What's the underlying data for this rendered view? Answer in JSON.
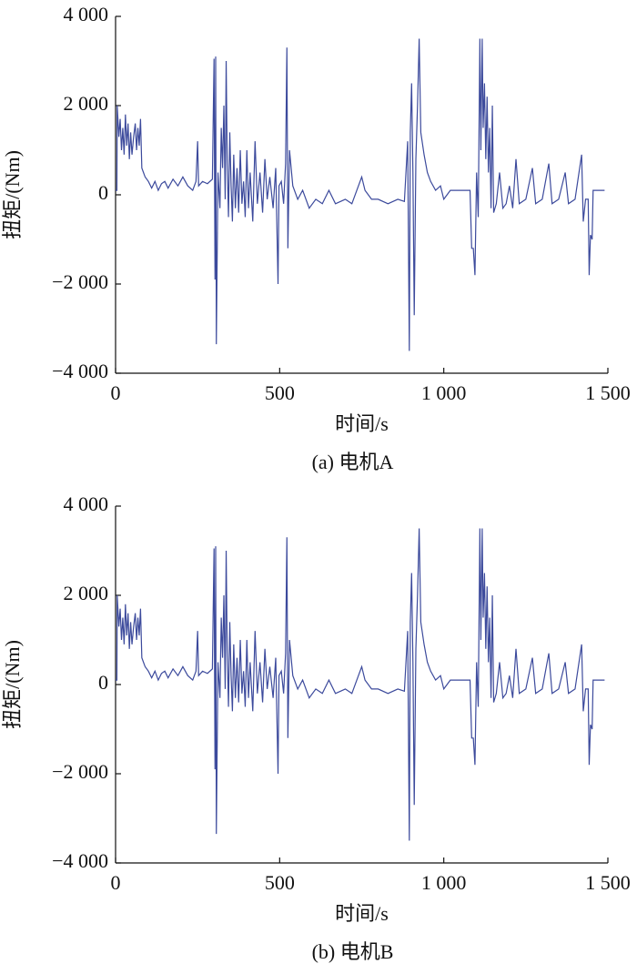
{
  "chart_data": [
    {
      "type": "line",
      "title": "(a)  电机A",
      "x_label": "时间/s",
      "y_label": "扭矩/(Nm)",
      "color": "#3c4a9c",
      "xlim": [
        0,
        1500
      ],
      "xticks": [
        0,
        500,
        {
          "value": 1000,
          "label": "1 000"
        },
        {
          "value": 1500,
          "label": "1 500"
        }
      ],
      "ylim": [
        -4000,
        4000
      ],
      "yticks": [
        {
          "value": -4000,
          "label": "−4 000"
        },
        {
          "value": -2000,
          "label": "−2 000"
        },
        0,
        {
          "value": 2000,
          "label": "2 000"
        },
        {
          "value": 4000,
          "label": "4 000"
        }
      ],
      "x": [
        0,
        4,
        5,
        10,
        14,
        18,
        22,
        26,
        30,
        34,
        38,
        42,
        46,
        50,
        55,
        60,
        64,
        68,
        72,
        76,
        80,
        85,
        90,
        100,
        110,
        120,
        130,
        140,
        150,
        160,
        175,
        190,
        205,
        220,
        235,
        245,
        250,
        253,
        265,
        280,
        295,
        300,
        303,
        305,
        307,
        312,
        318,
        322,
        326,
        330,
        334,
        337,
        340,
        344,
        348,
        352,
        356,
        360,
        365,
        370,
        375,
        380,
        385,
        390,
        395,
        400,
        405,
        410,
        418,
        425,
        432,
        440,
        448,
        455,
        462,
        470,
        480,
        488,
        495,
        498,
        505,
        512,
        518,
        522,
        525,
        530,
        540,
        555,
        570,
        590,
        610,
        630,
        650,
        670,
        700,
        720,
        740,
        750,
        760,
        780,
        800,
        830,
        860,
        880,
        890,
        895,
        898,
        902,
        906,
        910,
        915,
        920,
        925,
        930,
        940,
        950,
        960,
        975,
        990,
        1000,
        1010,
        1020,
        1040,
        1060,
        1080,
        1085,
        1090,
        1095,
        1100,
        1105,
        1110,
        1113,
        1117,
        1120,
        1124,
        1128,
        1132,
        1136,
        1140,
        1144,
        1148,
        1152,
        1160,
        1170,
        1180,
        1190,
        1200,
        1210,
        1220,
        1230,
        1250,
        1270,
        1280,
        1300,
        1320,
        1330,
        1350,
        1370,
        1380,
        1400,
        1420,
        1425,
        1432,
        1440,
        1443,
        1447,
        1452,
        1455,
        1490
      ],
      "values": [
        100,
        100,
        2000,
        1300,
        1700,
        1000,
        1500,
        900,
        1800,
        1100,
        1600,
        800,
        1400,
        900,
        1300,
        1600,
        1000,
        1500,
        1100,
        1700,
        600,
        500,
        400,
        300,
        150,
        300,
        100,
        250,
        300,
        150,
        350,
        200,
        400,
        200,
        100,
        300,
        1200,
        200,
        300,
        250,
        350,
        3050,
        -1900,
        3100,
        -3350,
        500,
        -300,
        1500,
        600,
        2000,
        -100,
        3000,
        800,
        -500,
        1400,
        200,
        -600,
        900,
        -300,
        600,
        -400,
        1000,
        -200,
        300,
        -500,
        1000,
        -300,
        500,
        -600,
        1200,
        -200,
        500,
        -400,
        800,
        -100,
        400,
        -300,
        600,
        -2000,
        200,
        300,
        -200,
        700,
        3300,
        -1200,
        1000,
        200,
        -100,
        100,
        -300,
        -100,
        -200,
        100,
        -200,
        -100,
        -200,
        200,
        400,
        100,
        -100,
        -100,
        -200,
        -100,
        -150,
        1200,
        -3500,
        1400,
        2500,
        500,
        -2700,
        800,
        2000,
        3500,
        1400,
        900,
        500,
        300,
        100,
        200,
        -100,
        0,
        100,
        100,
        100,
        100,
        -1200,
        -1200,
        -1800,
        500,
        -500,
        3500,
        1000,
        3500,
        1500,
        2500,
        800,
        2200,
        500,
        1500,
        -300,
        2000,
        -400,
        -200,
        500,
        -300,
        -200,
        200,
        -300,
        800,
        -200,
        -100,
        600,
        -200,
        -100,
        700,
        -200,
        -100,
        500,
        -200,
        -100,
        900,
        -600,
        -100,
        -100,
        -1800,
        -900,
        -1000,
        100,
        100
      ]
    },
    {
      "type": "line",
      "title": "(b)  电机B",
      "x_label": "时间/s",
      "y_label": "扭矩/(Nm)",
      "color": "#3c4a9c",
      "xlim": [
        0,
        1500
      ],
      "xticks": [
        0,
        500,
        {
          "value": 1000,
          "label": "1 000"
        },
        {
          "value": 1500,
          "label": "1 500"
        }
      ],
      "ylim": [
        -4000,
        4000
      ],
      "yticks": [
        {
          "value": -4000,
          "label": "−4 000"
        },
        {
          "value": -2000,
          "label": "−2 000"
        },
        0,
        {
          "value": 2000,
          "label": "2 000"
        },
        {
          "value": 4000,
          "label": "4 000"
        }
      ],
      "x": [
        0,
        4,
        5,
        10,
        14,
        18,
        22,
        26,
        30,
        34,
        38,
        42,
        46,
        50,
        55,
        60,
        64,
        68,
        72,
        76,
        80,
        85,
        90,
        100,
        110,
        120,
        130,
        140,
        150,
        160,
        175,
        190,
        205,
        220,
        235,
        245,
        250,
        253,
        265,
        280,
        295,
        300,
        303,
        305,
        307,
        312,
        318,
        322,
        326,
        330,
        334,
        337,
        340,
        344,
        348,
        352,
        356,
        360,
        365,
        370,
        375,
        380,
        385,
        390,
        395,
        400,
        405,
        410,
        418,
        425,
        432,
        440,
        448,
        455,
        462,
        470,
        480,
        488,
        495,
        498,
        505,
        512,
        518,
        522,
        525,
        530,
        540,
        555,
        570,
        590,
        610,
        630,
        650,
        670,
        700,
        720,
        740,
        750,
        760,
        780,
        800,
        830,
        860,
        880,
        890,
        895,
        898,
        902,
        906,
        910,
        915,
        920,
        925,
        930,
        940,
        950,
        960,
        975,
        990,
        1000,
        1010,
        1020,
        1040,
        1060,
        1080,
        1085,
        1090,
        1095,
        1100,
        1105,
        1110,
        1113,
        1117,
        1120,
        1124,
        1128,
        1132,
        1136,
        1140,
        1144,
        1148,
        1152,
        1160,
        1170,
        1180,
        1190,
        1200,
        1210,
        1220,
        1230,
        1250,
        1270,
        1280,
        1300,
        1320,
        1330,
        1350,
        1370,
        1380,
        1400,
        1420,
        1425,
        1432,
        1440,
        1443,
        1447,
        1452,
        1455,
        1490
      ],
      "values": [
        100,
        100,
        2000,
        1300,
        1700,
        1000,
        1500,
        900,
        1800,
        1100,
        1600,
        800,
        1400,
        900,
        1300,
        1600,
        1000,
        1500,
        1100,
        1700,
        600,
        500,
        400,
        300,
        150,
        300,
        100,
        250,
        300,
        150,
        350,
        200,
        400,
        200,
        100,
        300,
        1200,
        200,
        300,
        250,
        350,
        3050,
        -1900,
        3100,
        -3350,
        500,
        -300,
        1500,
        600,
        2000,
        -100,
        3000,
        800,
        -500,
        1400,
        200,
        -600,
        900,
        -300,
        600,
        -400,
        1000,
        -200,
        300,
        -500,
        1000,
        -300,
        500,
        -600,
        1200,
        -200,
        500,
        -400,
        800,
        -100,
        400,
        -300,
        600,
        -2000,
        200,
        300,
        -200,
        700,
        3300,
        -1200,
        1000,
        200,
        -100,
        100,
        -300,
        -100,
        -200,
        100,
        -200,
        -100,
        -200,
        200,
        400,
        100,
        -100,
        -100,
        -200,
        -100,
        -150,
        1200,
        -3500,
        1400,
        2500,
        500,
        -2700,
        800,
        2000,
        3500,
        1400,
        900,
        500,
        300,
        100,
        200,
        -100,
        0,
        100,
        100,
        100,
        100,
        -1200,
        -1200,
        -1800,
        500,
        -500,
        3500,
        1000,
        3500,
        1500,
        2500,
        800,
        2200,
        500,
        1500,
        -300,
        2000,
        -400,
        -200,
        500,
        -300,
        -200,
        200,
        -300,
        800,
        -200,
        -100,
        600,
        -200,
        -100,
        700,
        -200,
        -100,
        500,
        -200,
        -100,
        900,
        -600,
        -100,
        -100,
        -1800,
        -900,
        -1000,
        100,
        100
      ]
    }
  ]
}
